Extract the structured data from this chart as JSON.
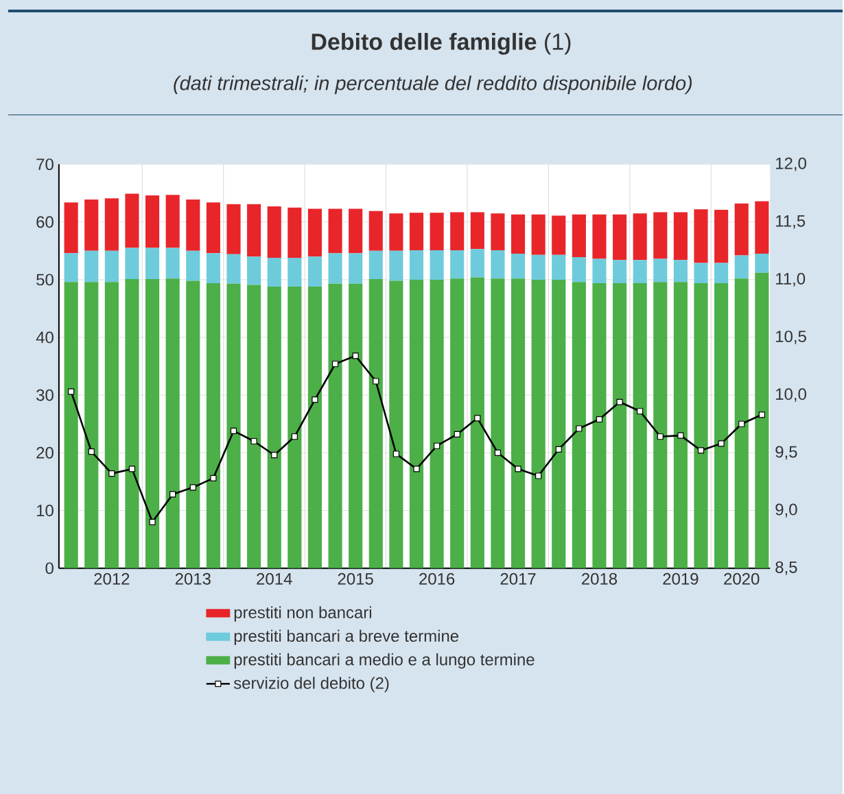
{
  "chart_data": {
    "type": "bar",
    "stacked": true,
    "title": "**Debito delle famiglie** (1)",
    "subtitle": "(dati trimestrali; in percentuale del reddito disponibile lordo)",
    "categories": [
      null,
      null,
      "2012",
      null,
      null,
      null,
      "2013",
      null,
      null,
      null,
      "2014",
      null,
      null,
      null,
      "2015",
      null,
      null,
      null,
      "2016",
      null,
      null,
      null,
      "2017",
      null,
      null,
      null,
      "2018",
      null,
      null,
      null,
      "2019",
      null,
      null,
      "2020",
      null
    ],
    "series": [
      {
        "name": "prestiti bancari a medio e a lungo termine",
        "color": "#4caf48",
        "values": [
          49.6,
          49.6,
          49.6,
          50.1,
          50.1,
          50.2,
          49.8,
          49.4,
          49.3,
          49.1,
          48.8,
          48.8,
          48.8,
          49.3,
          49.3,
          50.1,
          49.8,
          50.0,
          50.0,
          50.2,
          50.4,
          50.2,
          50.2,
          50.0,
          50.0,
          49.6,
          49.4,
          49.4,
          49.4,
          49.6,
          49.6,
          49.4,
          49.4,
          50.2,
          51.2
        ]
      },
      {
        "name": "prestiti bancari a breve termine",
        "color": "#6ecbdc",
        "values": [
          5.0,
          5.4,
          5.4,
          5.4,
          5.4,
          5.3,
          5.2,
          5.2,
          5.1,
          4.9,
          5.0,
          5.0,
          5.2,
          5.3,
          5.3,
          4.9,
          5.2,
          5.1,
          5.1,
          4.9,
          4.9,
          4.9,
          4.3,
          4.3,
          4.3,
          4.3,
          4.2,
          4.0,
          4.0,
          4.0,
          3.8,
          3.5,
          3.5,
          4.0,
          3.3
        ]
      },
      {
        "name": "prestiti non bancari",
        "color": "#e8262a",
        "values": [
          8.8,
          8.9,
          9.1,
          9.4,
          9.1,
          9.2,
          8.9,
          8.8,
          8.7,
          9.1,
          8.9,
          8.7,
          8.3,
          7.7,
          7.7,
          6.9,
          6.5,
          6.5,
          6.5,
          6.6,
          6.4,
          6.4,
          6.8,
          7.0,
          6.8,
          7.4,
          7.7,
          7.9,
          8.1,
          8.1,
          8.3,
          9.3,
          9.2,
          9.0,
          9.1
        ]
      },
      {
        "name": "servizio del debito (2)",
        "type": "line",
        "axis": "y2",
        "color": "#000000",
        "marker": "square",
        "values": [
          10.03,
          9.51,
          9.32,
          9.36,
          8.9,
          9.14,
          9.2,
          9.28,
          9.69,
          9.6,
          9.48,
          9.64,
          9.96,
          10.27,
          10.34,
          10.12,
          9.49,
          9.36,
          9.56,
          9.66,
          9.8,
          9.5,
          9.36,
          9.3,
          9.53,
          9.71,
          9.79,
          9.94,
          9.86,
          9.64,
          9.65,
          9.52,
          9.58,
          9.75,
          9.83
        ]
      }
    ],
    "ylim": [
      0,
      70
    ],
    "yticks": [
      0,
      10,
      20,
      30,
      40,
      50,
      60,
      70
    ],
    "y2lim": [
      8.5,
      12.0
    ],
    "y2ticks": [
      {
        "value": 8.5,
        "label": "8,5"
      },
      {
        "value": 9.0,
        "label": "9,0"
      },
      {
        "value": 9.5,
        "label": "9,5"
      },
      {
        "value": 10.0,
        "label": "10,0"
      },
      {
        "value": 10.5,
        "label": "10,5"
      },
      {
        "value": 11.0,
        "label": "11,0"
      },
      {
        "value": 11.5,
        "label": "11,5"
      },
      {
        "value": 12.0,
        "label": "12,0"
      }
    ],
    "grid": true,
    "legend": "bottom"
  }
}
